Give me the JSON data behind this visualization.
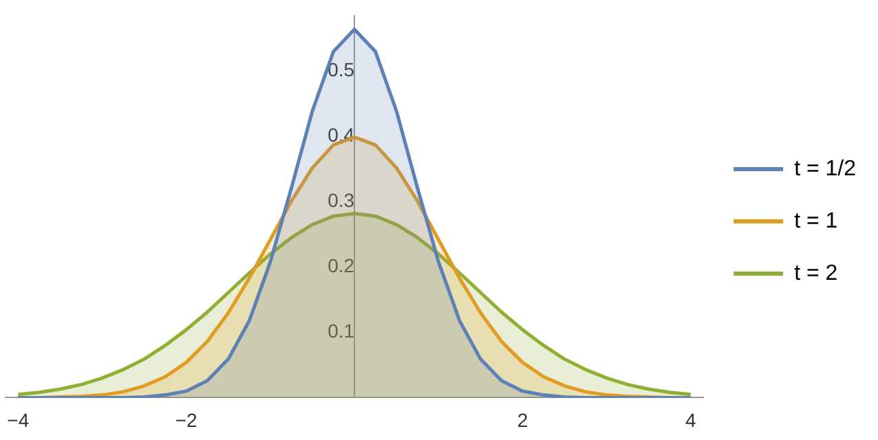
{
  "chart_data": {
    "type": "area",
    "x": [
      -4,
      -3.75,
      -3.5,
      -3.25,
      -3,
      -2.75,
      -2.5,
      -2.25,
      -2,
      -1.75,
      -1.5,
      -1.25,
      -1,
      -0.75,
      -0.5,
      -0.25,
      0,
      0.25,
      0.5,
      0.75,
      1,
      1.25,
      1.5,
      1.75,
      2,
      2.25,
      2.5,
      2.75,
      3,
      3.25,
      3.5,
      3.75,
      4
    ],
    "series": [
      {
        "name": "t = 1/2",
        "color": "#5e81b5",
        "values": [
          0,
          0,
          0,
          0,
          0,
          0,
          0.001,
          0.004,
          0.01,
          0.026,
          0.059,
          0.118,
          0.208,
          0.321,
          0.439,
          0.53,
          0.564,
          0.53,
          0.439,
          0.321,
          0.208,
          0.118,
          0.059,
          0.026,
          0.01,
          0.004,
          0.001,
          0,
          0,
          0,
          0,
          0,
          0
        ]
      },
      {
        "name": "t = 1",
        "color": "#e19c24",
        "values": [
          0,
          0,
          0.001,
          0.002,
          0.004,
          0.009,
          0.018,
          0.032,
          0.054,
          0.086,
          0.13,
          0.183,
          0.242,
          0.301,
          0.352,
          0.387,
          0.399,
          0.387,
          0.352,
          0.301,
          0.242,
          0.183,
          0.13,
          0.086,
          0.054,
          0.032,
          0.018,
          0.009,
          0.004,
          0.002,
          0.001,
          0,
          0
        ]
      },
      {
        "name": "t = 2",
        "color": "#8fb032",
        "values": [
          0.005,
          0.008,
          0.013,
          0.02,
          0.03,
          0.043,
          0.059,
          0.08,
          0.104,
          0.131,
          0.161,
          0.191,
          0.22,
          0.245,
          0.265,
          0.278,
          0.282,
          0.278,
          0.265,
          0.245,
          0.22,
          0.191,
          0.161,
          0.131,
          0.104,
          0.08,
          0.059,
          0.043,
          0.03,
          0.02,
          0.013,
          0.008,
          0.005
        ]
      }
    ],
    "xlim": [
      -4.15,
      4.15
    ],
    "xticks": [
      -4,
      -2,
      2,
      4
    ],
    "ylim": [
      0,
      0.585
    ],
    "yticks": [
      0.1,
      0.2,
      0.3,
      0.4,
      0.5
    ],
    "grid": false,
    "legend": "right",
    "marker": "none",
    "line_style": "solid"
  }
}
